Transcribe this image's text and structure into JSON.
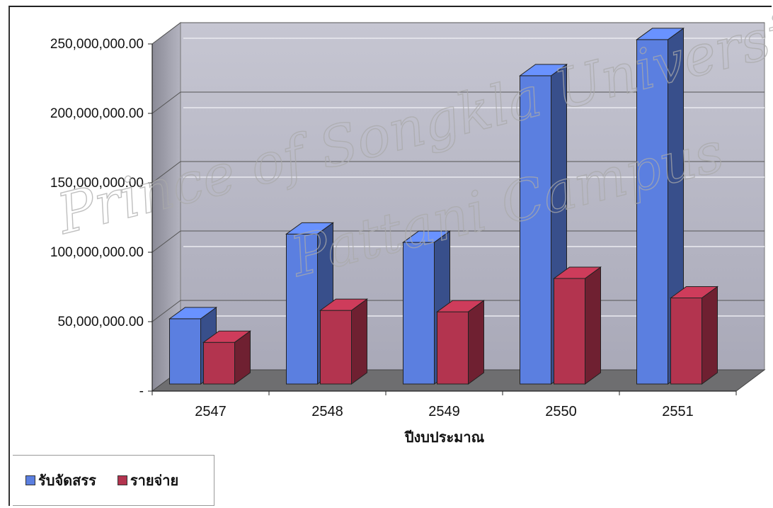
{
  "chart_data": {
    "type": "bar",
    "style": "3d-clustered-column",
    "categories": [
      "2547",
      "2548",
      "2549",
      "2550",
      "2551"
    ],
    "series": [
      {
        "name": "รับจัดสรร",
        "color": "#5b7fe0",
        "values": [
          47000000,
          108000000,
          102000000,
          222000000,
          248000000
        ]
      },
      {
        "name": "รายจ่าย",
        "color": "#b3344f",
        "values": [
          30000000,
          53000000,
          52000000,
          76000000,
          62000000
        ]
      }
    ],
    "xlabel": "ปีงบประมาณ",
    "ylabel": "",
    "ylim": [
      0,
      250000000
    ],
    "yticks": [
      0,
      50000000,
      100000000,
      150000000,
      200000000,
      250000000
    ],
    "ytick_labels": [
      "-",
      "50,000,000.00",
      "100,000,000.00",
      "150,000,000.00",
      "200,000,000.00",
      "250,000,000.00"
    ],
    "grid": true,
    "legend_position": "bottom-left"
  },
  "watermark": {
    "line1": "Prince of Songkla University",
    "line2": "Pattani Campus"
  }
}
